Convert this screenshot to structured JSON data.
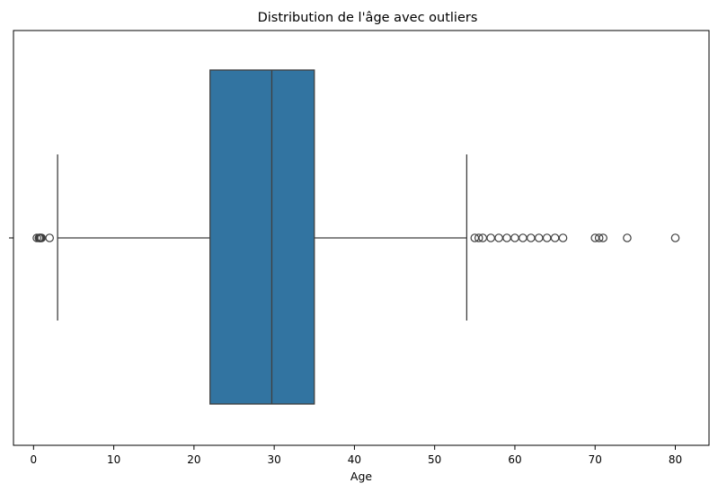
{
  "chart_data": {
    "type": "boxplot",
    "orientation": "horizontal",
    "title": "Distribution de l'âge avec outliers",
    "xlabel": "Age",
    "ylabel": "",
    "xlim": [
      -2.5,
      84.2
    ],
    "x_ticks": [
      0,
      10,
      20,
      30,
      40,
      50,
      60,
      70,
      80
    ],
    "box": {
      "whisker_low": 3,
      "q1": 22,
      "median": 29.7,
      "q3": 35,
      "whisker_high": 54,
      "color": "#3274a1",
      "line_color": "#3f3f3f"
    },
    "outliers": [
      0.42,
      0.67,
      0.75,
      0.83,
      0.92,
      1,
      2,
      55,
      55.5,
      56,
      57,
      58,
      59,
      60,
      61,
      62,
      63,
      64,
      65,
      66,
      70,
      70.5,
      71,
      74,
      80
    ],
    "grid": false,
    "legend": "none"
  }
}
